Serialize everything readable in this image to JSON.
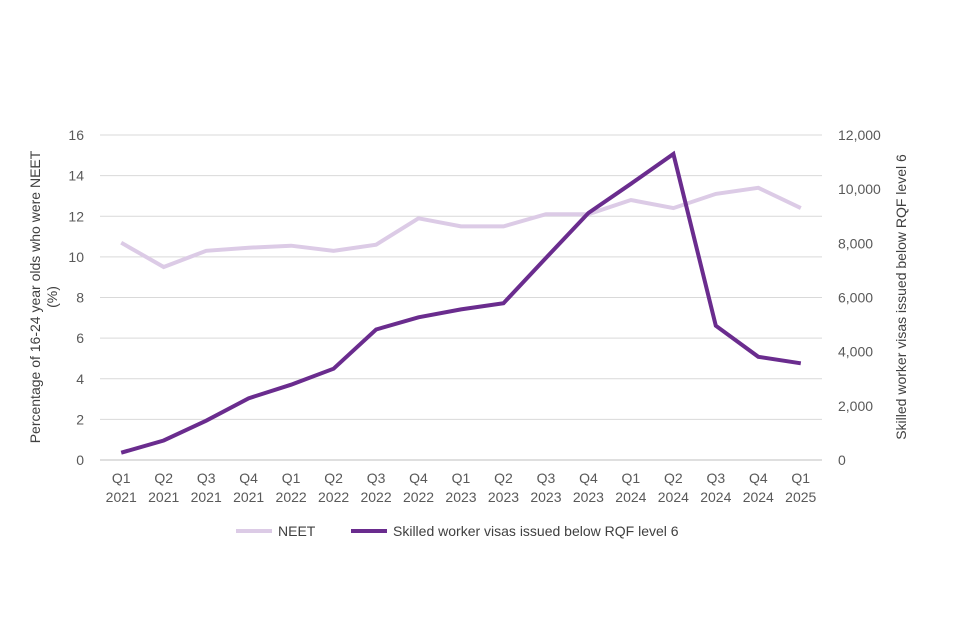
{
  "chart_data": {
    "type": "line",
    "title": "",
    "categories": [
      [
        "Q1",
        "2021"
      ],
      [
        "Q2",
        "2021"
      ],
      [
        "Q3",
        "2021"
      ],
      [
        "Q4",
        "2021"
      ],
      [
        "Q1",
        "2022"
      ],
      [
        "Q2",
        "2022"
      ],
      [
        "Q3",
        "2022"
      ],
      [
        "Q4",
        "2022"
      ],
      [
        "Q1",
        "2023"
      ],
      [
        "Q2",
        "2023"
      ],
      [
        "Q3",
        "2023"
      ],
      [
        "Q4",
        "2023"
      ],
      [
        "Q1",
        "2024"
      ],
      [
        "Q2",
        "2024"
      ],
      [
        "Q3",
        "2024"
      ],
      [
        "Q4",
        "2024"
      ],
      [
        "Q1",
        "2025"
      ]
    ],
    "left_axis": {
      "label_line1": "Percentage of 16-24 year olds  who were NEET",
      "label_line2": "(%)",
      "ylim": [
        0,
        16
      ],
      "ticks": [
        0,
        2,
        4,
        6,
        8,
        10,
        12,
        14,
        16
      ],
      "tick_labels": [
        "0",
        "2",
        "4",
        "6",
        "8",
        "10",
        "12",
        "14",
        "16"
      ]
    },
    "right_axis": {
      "label": "Skilled worker visas issued below RQF level 6",
      "ylim": [
        0,
        12000
      ],
      "ticks": [
        0,
        2000,
        4000,
        6000,
        8000,
        10000,
        12000
      ],
      "tick_labels": [
        "0",
        "2,000",
        "4,000",
        "6,000",
        "8,000",
        "10,000",
        "12,000"
      ]
    },
    "grid": true,
    "legend_position": "bottom",
    "series": [
      {
        "name": "NEET",
        "axis": "left",
        "color": "#dccbe6",
        "values": [
          10.7,
          9.5,
          10.3,
          10.45,
          10.55,
          10.3,
          10.6,
          11.9,
          11.5,
          11.5,
          12.1,
          12.1,
          12.8,
          12.4,
          13.1,
          13.4,
          12.4
        ]
      },
      {
        "name": "Skilled worker visas issued below RQF level 6",
        "axis": "right",
        "color": "#6a2c8e",
        "values": [
          270,
          720,
          1450,
          2280,
          2780,
          3370,
          4820,
          5270,
          5560,
          5790,
          7460,
          9120,
          10200,
          11300,
          4960,
          3810,
          3570
        ]
      }
    ]
  }
}
